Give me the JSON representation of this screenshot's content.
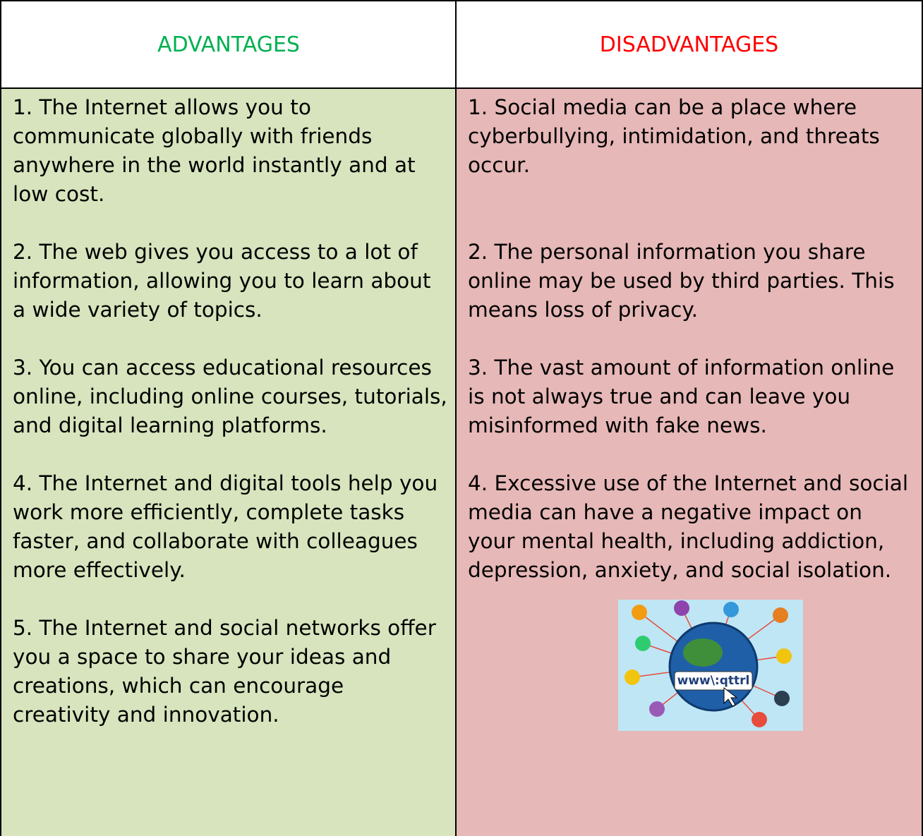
{
  "table": {
    "headers": [
      "ADVANTAGES",
      "DISADVANTAGES"
    ],
    "advantages": [
      "1. The Internet allows you to communicate globally with friends anywhere in the world instantly and at low cost.",
      "2. The web gives you access to a lot of information, allowing you to learn about a wide variety of topics.",
      "3. You can access educational resources online, including online courses, tutorials, and digital learning platforms.",
      "4. The Internet and digital tools help you work more efficiently, complete tasks faster, and collaborate with colleagues more effectively.",
      "5. The Internet and social networks offer you a space to share your ideas and creations, which can encourage creativity and innovation."
    ],
    "disadvantages": [
      "1. Social media can be a place where cyberbullying, intimidation, and threats occur.",
      "2. The personal information you share online may be used by third parties. This means loss of privacy.",
      "3. The vast amount of information online is not always true and can leave you misinformed with fake news.",
      "4. Excessive use of the Internet and social media can have a negative impact on your mental health, including addiction, depression, anxiety, and social isolation."
    ]
  },
  "illustration": {
    "label": "www\\:qttrl"
  }
}
